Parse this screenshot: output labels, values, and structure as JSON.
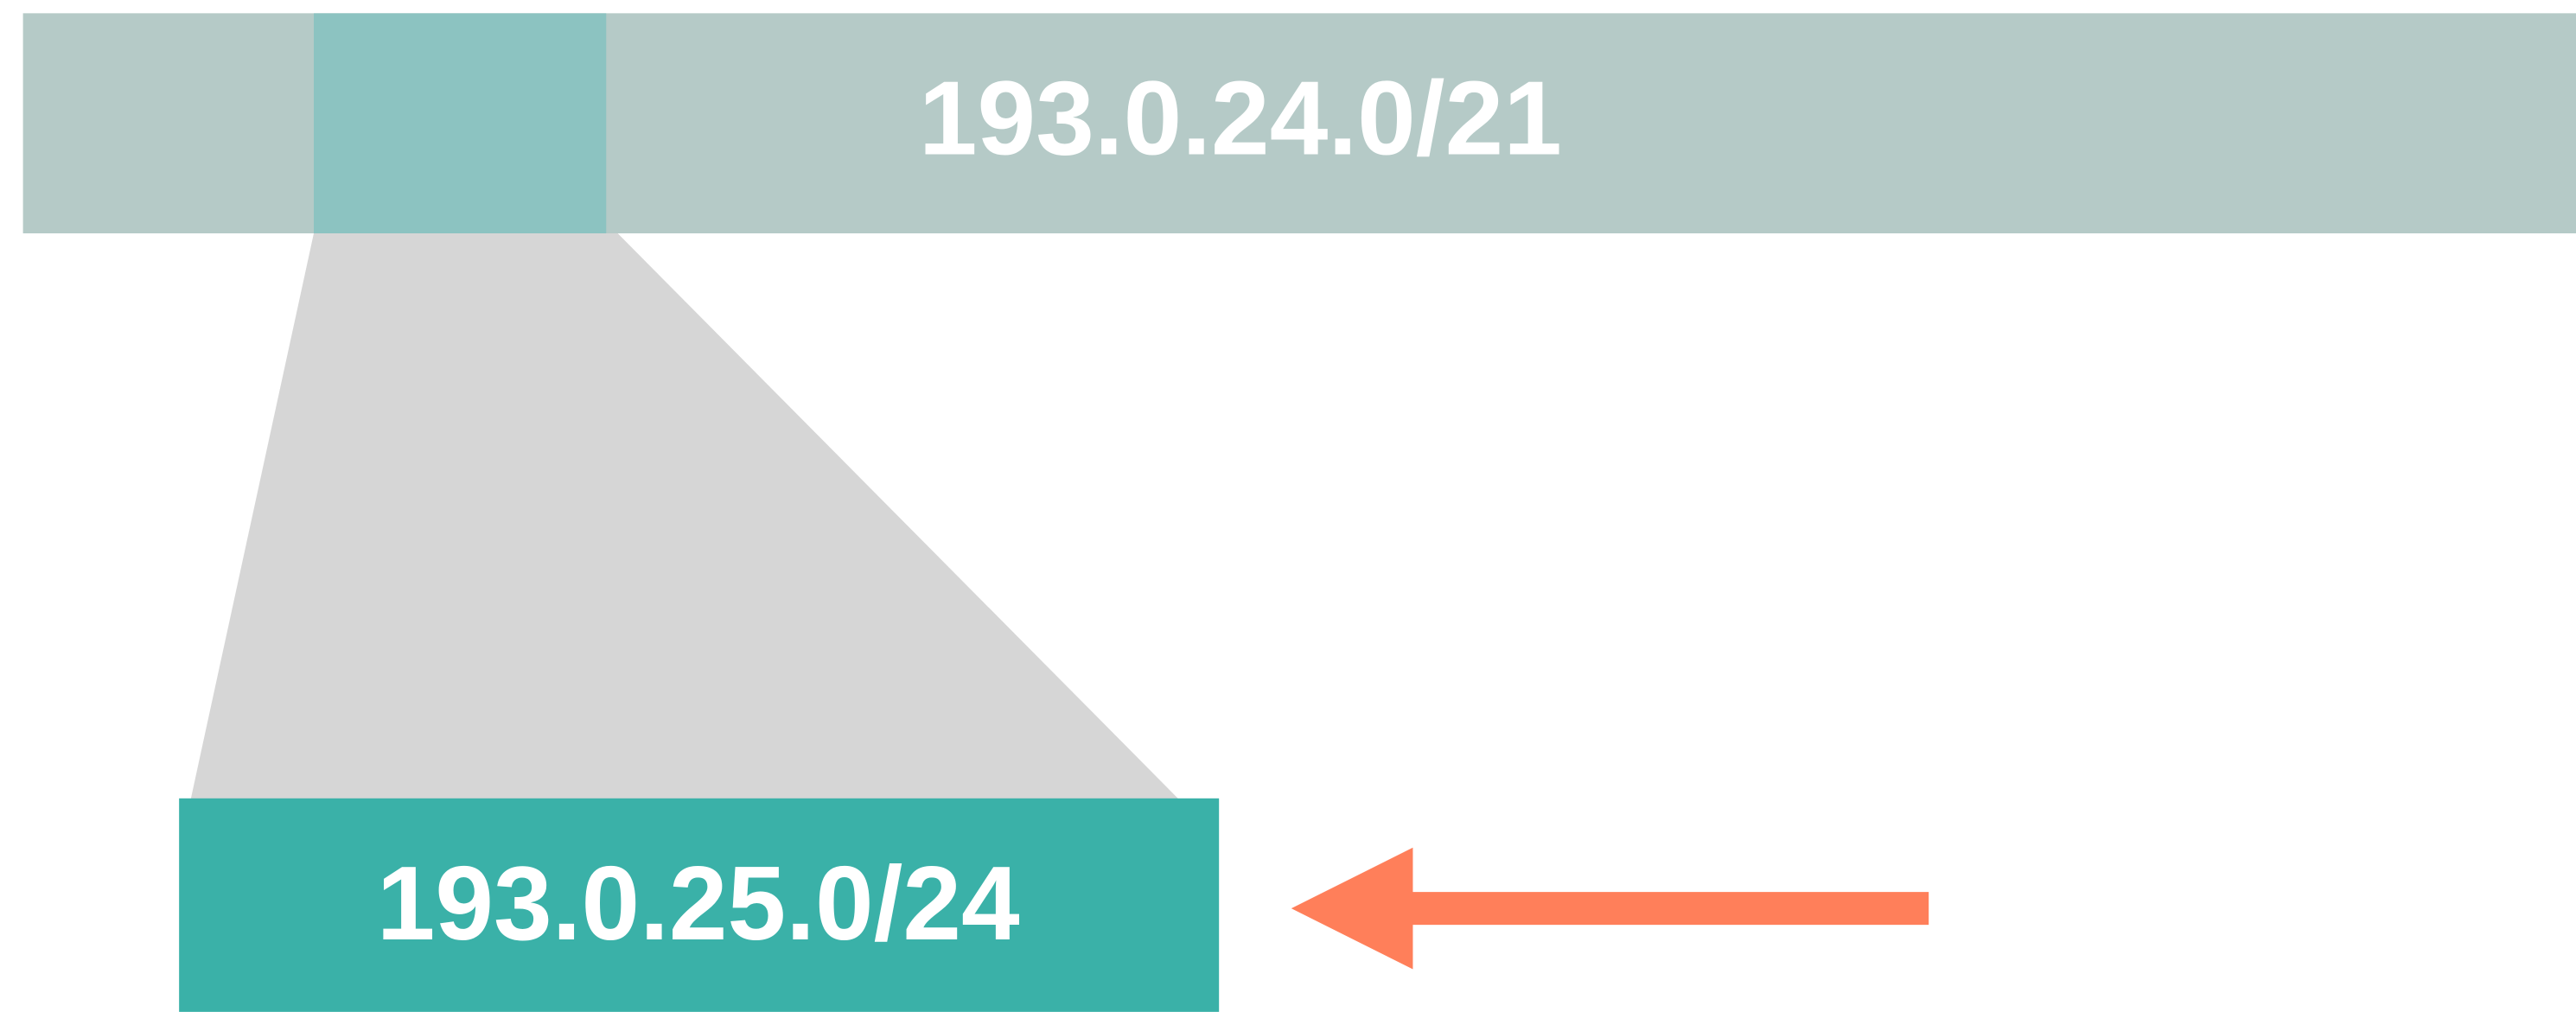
{
  "blocks": [
    {
      "label": "193.0.24.0/21"
    },
    {
      "label": "193.0.25.0/24"
    }
  ]
}
